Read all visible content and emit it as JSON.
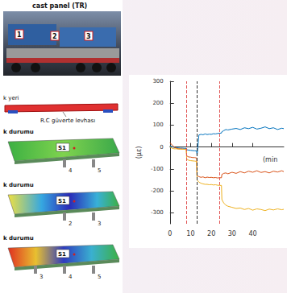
{
  "left_panel": {
    "photo_title": "cast panel (TR)",
    "photo_labels": [
      "1",
      "2",
      "3"
    ],
    "beam_labels": [
      "k yeri",
      "R.C güverte levhası"
    ],
    "contours": [
      {
        "title": "k durumu",
        "sensor": "S1",
        "supports": [
          "4",
          "5"
        ]
      },
      {
        "title": "k durumu",
        "sensor": "S1",
        "supports": [
          "2",
          "3"
        ]
      },
      {
        "title": "k durumu",
        "sensor": "S1",
        "supports": [
          "3",
          "4",
          "5"
        ]
      }
    ]
  },
  "chart_data": {
    "type": "line",
    "x": [
      0,
      1,
      2,
      3,
      4,
      5,
      6,
      7,
      7.9,
      8.1,
      9,
      10,
      11,
      12,
      12.9,
      13.1,
      14,
      15,
      16,
      17,
      18,
      19,
      20,
      21,
      22,
      23,
      24,
      24.9,
      25.1,
      26,
      27,
      28,
      30,
      32,
      34,
      36,
      38,
      40,
      42,
      44,
      46,
      48,
      50,
      52,
      54,
      55
    ],
    "series": [
      {
        "color": "#0072BD",
        "values": [
          5,
          2,
          -2,
          -3,
          -4,
          -5,
          -5,
          -6,
          -6,
          -12,
          -14,
          -15,
          -16,
          -17,
          -18,
          -40,
          55,
          58,
          56,
          60,
          57,
          59,
          58,
          61,
          60,
          62,
          63,
          64,
          70,
          75,
          80,
          78,
          82,
          85,
          80,
          88,
          84,
          90,
          82,
          86,
          92,
          84,
          88,
          80,
          86,
          84
        ]
      },
      {
        "color": "#D95319",
        "values": [
          20,
          10,
          0,
          -5,
          -8,
          -8,
          -9,
          -10,
          -10,
          -40,
          -45,
          -46,
          -48,
          -48,
          -50,
          -130,
          -135,
          -138,
          -136,
          -140,
          -137,
          -139,
          -138,
          -140,
          -139,
          -141,
          -140,
          -140,
          -125,
          -120,
          -118,
          -122,
          -115,
          -120,
          -112,
          -118,
          -110,
          -115,
          -108,
          -116,
          -112,
          -118,
          -110,
          -114,
          -108,
          -112
        ]
      },
      {
        "color": "#EDB120",
        "values": [
          0,
          -5,
          -8,
          -8,
          -9,
          -10,
          -10,
          -10,
          -10,
          -55,
          -60,
          -62,
          -63,
          -64,
          -65,
          -150,
          -160,
          -165,
          -168,
          -170,
          -170,
          -172,
          -171,
          -173,
          -172,
          -174,
          -175,
          -175,
          -240,
          -255,
          -265,
          -270,
          -275,
          -280,
          -278,
          -285,
          -280,
          -288,
          -282,
          -285,
          -290,
          -283,
          -287,
          -282,
          -286,
          -284
        ]
      }
    ],
    "vertical_lines": [
      {
        "value": 8,
        "color": "#e05050"
      },
      {
        "value": 13,
        "color": "#333333"
      },
      {
        "value": 24,
        "color": "#e05050"
      }
    ],
    "xlabel": "(min",
    "ylabel": "(με)",
    "xlim": [
      0,
      55
    ],
    "xticks": [
      0,
      10,
      20,
      30,
      40
    ],
    "ylim": [
      -350,
      300
    ],
    "yticks": [
      -300,
      -200,
      -100,
      0,
      100,
      200,
      300
    ],
    "grid": false
  }
}
